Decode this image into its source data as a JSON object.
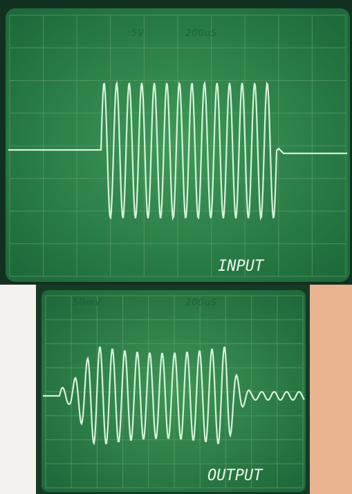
{
  "top_scope": {
    "volts_label": "5V",
    "time_label": "200uS",
    "caption": "INPUT"
  },
  "bottom_scope": {
    "volts_label": "50mV",
    "time_label": "200uS",
    "caption": "OUTPUT"
  }
}
